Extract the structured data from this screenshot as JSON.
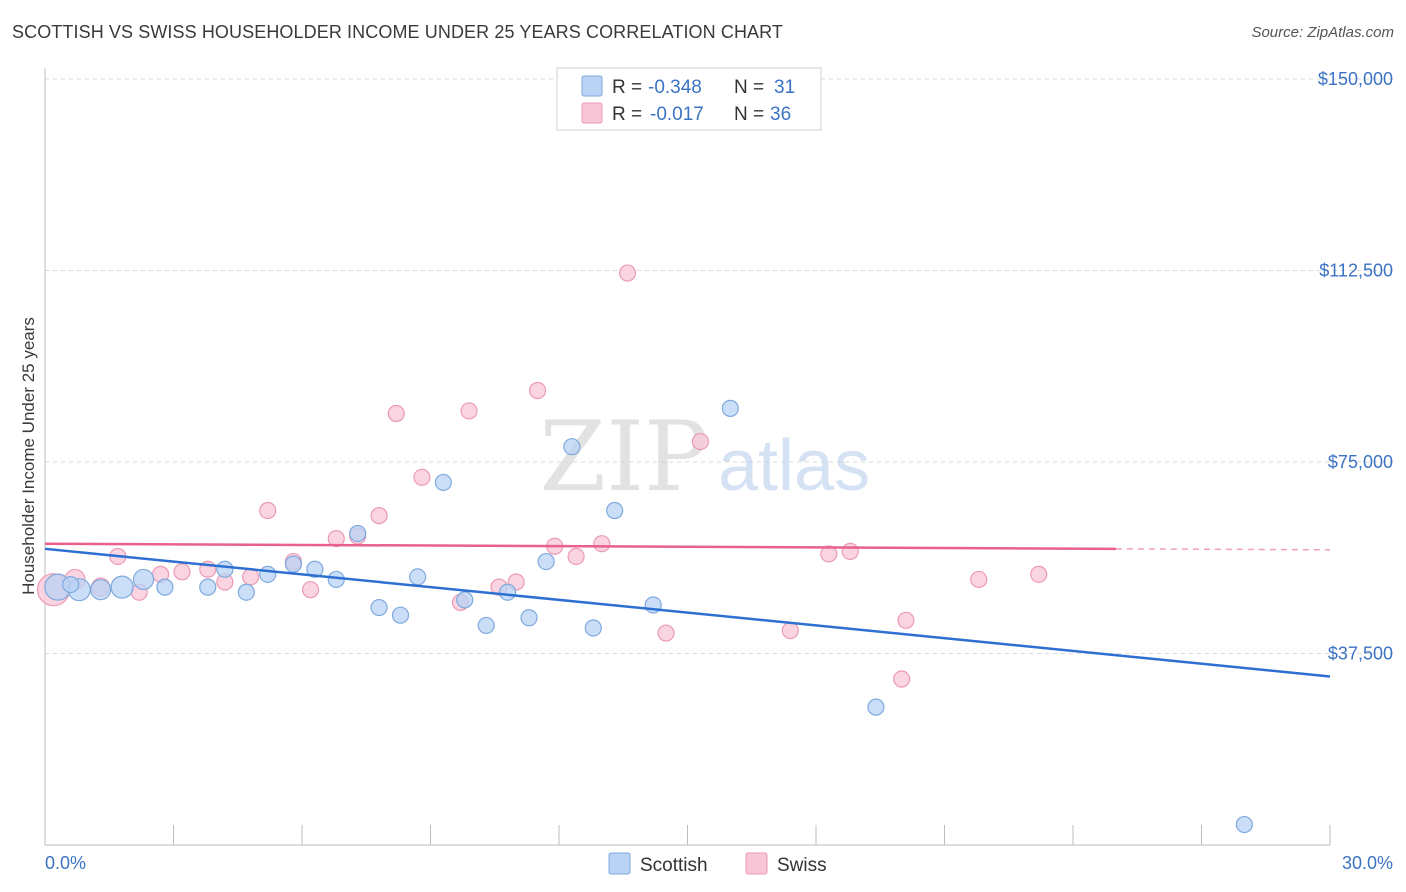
{
  "title": "SCOTTISH VS SWISS HOUSEHOLDER INCOME UNDER 25 YEARS CORRELATION CHART",
  "source": "Source: ZipAtlas.com",
  "watermark": {
    "zip": "ZIP",
    "atlas": "atlas"
  },
  "colors": {
    "scottish_fill": "#b8d3f4",
    "scottish_stroke": "#7fa9df",
    "scottish_line": "#2e6fd2",
    "swiss_fill": "#f8c6d6",
    "swiss_stroke": "#eb9ab4",
    "swiss_line": "#e8608b",
    "tick_label": "#3b73c4",
    "grid": "#d9d9d9"
  },
  "legend_top": {
    "rows": [
      {
        "r_label": "R =",
        "r_value": "-0.348",
        "n_label": "N =",
        "n_value": "31"
      },
      {
        "r_label": "R =",
        "r_value": "-0.017",
        "n_label": "N =",
        "n_value": "36"
      }
    ]
  },
  "legend_bottom": {
    "scottish": "Scottish",
    "swiss": "Swiss"
  },
  "chart_data": {
    "type": "scatter",
    "title": "SCOTTISH VS SWISS HOUSEHOLDER INCOME UNDER 25 YEARS CORRELATION CHART",
    "xlabel": "",
    "ylabel": "Householder Income Under 25 years",
    "xlim": [
      0,
      30
    ],
    "ylim": [
      0,
      155000
    ],
    "x_tick_labels": [
      "0.0%",
      "30.0%"
    ],
    "y_ticks": [
      37500,
      75000,
      112500,
      150000
    ],
    "y_tick_labels": [
      "$37,500",
      "$75,000",
      "$112,500",
      "$150,000"
    ],
    "grid": true,
    "series": [
      {
        "name": "Scottish",
        "r": -0.348,
        "n": 31,
        "trend": {
          "x": [
            0,
            30
          ],
          "y": [
            58000,
            33000
          ]
        },
        "points": [
          {
            "x": 0.3,
            "y": 50500,
            "s": 13
          },
          {
            "x": 0.8,
            "y": 50000,
            "s": 11
          },
          {
            "x": 1.3,
            "y": 50000,
            "s": 10
          },
          {
            "x": 1.8,
            "y": 50500,
            "s": 11
          },
          {
            "x": 2.3,
            "y": 52000,
            "s": 10
          },
          {
            "x": 2.8,
            "y": 50500,
            "s": 8
          },
          {
            "x": 3.8,
            "y": 50500,
            "s": 8
          },
          {
            "x": 4.2,
            "y": 54000,
            "s": 8
          },
          {
            "x": 4.7,
            "y": 49500,
            "s": 8
          },
          {
            "x": 5.2,
            "y": 53000,
            "s": 8
          },
          {
            "x": 5.8,
            "y": 55000,
            "s": 8
          },
          {
            "x": 6.3,
            "y": 54000,
            "s": 8
          },
          {
            "x": 6.8,
            "y": 52000,
            "s": 8
          },
          {
            "x": 7.3,
            "y": 61000,
            "s": 8
          },
          {
            "x": 7.8,
            "y": 46500,
            "s": 8
          },
          {
            "x": 8.3,
            "y": 45000,
            "s": 8
          },
          {
            "x": 8.7,
            "y": 52500,
            "s": 8
          },
          {
            "x": 9.3,
            "y": 71000,
            "s": 8
          },
          {
            "x": 9.8,
            "y": 48000,
            "s": 8
          },
          {
            "x": 10.3,
            "y": 43000,
            "s": 8
          },
          {
            "x": 10.8,
            "y": 49500,
            "s": 8
          },
          {
            "x": 11.3,
            "y": 44500,
            "s": 8
          },
          {
            "x": 11.7,
            "y": 55500,
            "s": 8
          },
          {
            "x": 12.3,
            "y": 78000,
            "s": 8
          },
          {
            "x": 12.8,
            "y": 42500,
            "s": 8
          },
          {
            "x": 13.3,
            "y": 65500,
            "s": 8
          },
          {
            "x": 14.2,
            "y": 47000,
            "s": 8
          },
          {
            "x": 16.0,
            "y": 85500,
            "s": 8
          },
          {
            "x": 19.4,
            "y": 27000,
            "s": 8
          },
          {
            "x": 28.0,
            "y": 4000,
            "s": 8
          },
          {
            "x": 0.6,
            "y": 51000,
            "s": 8
          }
        ]
      },
      {
        "name": "Swiss",
        "r": -0.017,
        "n": 36,
        "trend": {
          "x": [
            0,
            25
          ],
          "y": [
            59000,
            58000
          ],
          "dashed_to": 30
        },
        "points": [
          {
            "x": 0.2,
            "y": 50000,
            "s": 16
          },
          {
            "x": 0.7,
            "y": 52000,
            "s": 10
          },
          {
            "x": 1.3,
            "y": 50500,
            "s": 9
          },
          {
            "x": 1.7,
            "y": 56500,
            "s": 8
          },
          {
            "x": 2.2,
            "y": 49500,
            "s": 8
          },
          {
            "x": 2.7,
            "y": 53000,
            "s": 8
          },
          {
            "x": 3.2,
            "y": 53500,
            "s": 8
          },
          {
            "x": 3.8,
            "y": 54000,
            "s": 8
          },
          {
            "x": 4.2,
            "y": 51500,
            "s": 8
          },
          {
            "x": 4.8,
            "y": 52500,
            "s": 8
          },
          {
            "x": 5.2,
            "y": 65500,
            "s": 8
          },
          {
            "x": 5.8,
            "y": 55500,
            "s": 8
          },
          {
            "x": 6.2,
            "y": 50000,
            "s": 8
          },
          {
            "x": 6.8,
            "y": 60000,
            "s": 8
          },
          {
            "x": 7.3,
            "y": 60500,
            "s": 8
          },
          {
            "x": 7.8,
            "y": 64500,
            "s": 8
          },
          {
            "x": 8.2,
            "y": 84500,
            "s": 8
          },
          {
            "x": 8.8,
            "y": 72000,
            "s": 8
          },
          {
            "x": 9.7,
            "y": 47500,
            "s": 8
          },
          {
            "x": 9.9,
            "y": 85000,
            "s": 8
          },
          {
            "x": 10.6,
            "y": 50500,
            "s": 8
          },
          {
            "x": 11.0,
            "y": 51500,
            "s": 8
          },
          {
            "x": 11.5,
            "y": 89000,
            "s": 8
          },
          {
            "x": 11.9,
            "y": 58500,
            "s": 8
          },
          {
            "x": 12.4,
            "y": 56500,
            "s": 8
          },
          {
            "x": 13.0,
            "y": 59000,
            "s": 8
          },
          {
            "x": 13.6,
            "y": 112000,
            "s": 8
          },
          {
            "x": 14.5,
            "y": 41500,
            "s": 8
          },
          {
            "x": 15.3,
            "y": 79000,
            "s": 8
          },
          {
            "x": 17.4,
            "y": 42000,
            "s": 8
          },
          {
            "x": 18.3,
            "y": 57000,
            "s": 8
          },
          {
            "x": 18.8,
            "y": 57500,
            "s": 8
          },
          {
            "x": 20.0,
            "y": 32500,
            "s": 8
          },
          {
            "x": 20.1,
            "y": 44000,
            "s": 8
          },
          {
            "x": 21.8,
            "y": 52000,
            "s": 8
          },
          {
            "x": 23.2,
            "y": 53000,
            "s": 8
          }
        ]
      }
    ]
  }
}
